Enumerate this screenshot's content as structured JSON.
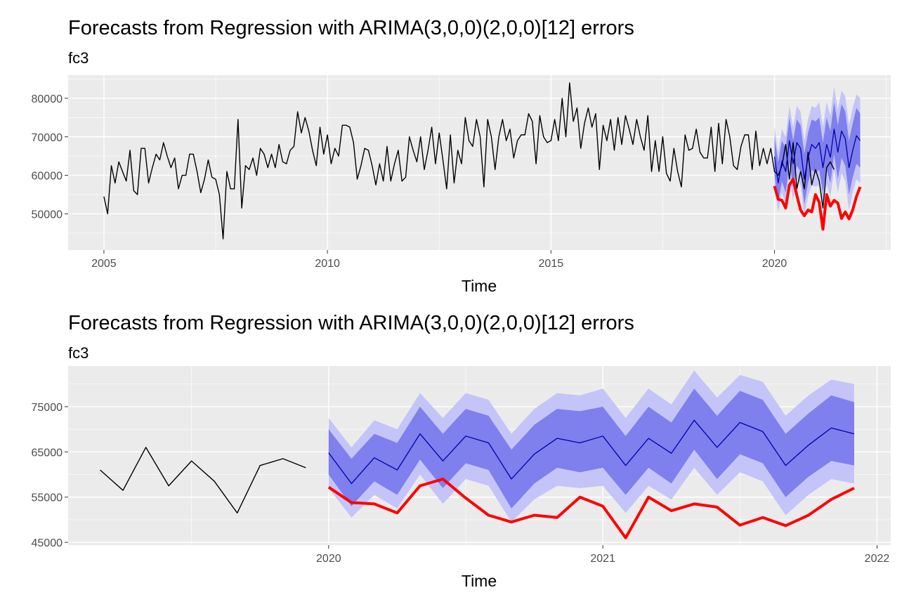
{
  "colors": {
    "panel_bg": "#ebebeb",
    "grid_major": "#ffffff",
    "history": "#000000",
    "forecast_mean": "#0000aa",
    "pi80": "#7f7fee",
    "pi95": "#c4c4f8",
    "actual": "#ff0000"
  },
  "chart_data": [
    {
      "type": "line",
      "title": "Forecasts from Regression with ARIMA(3,0,0)(2,0,0)[12] errors",
      "subtitle": "fc3",
      "xlabel": "Time",
      "ylabel": "",
      "xlim": [
        2004.2,
        2022.6
      ],
      "ylim": [
        40600,
        86000
      ],
      "xticks": [
        2005,
        2010,
        2015,
        2020
      ],
      "xtick_labels": [
        "2005",
        "2010",
        "2015",
        "2020"
      ],
      "yticks": [
        50000,
        60000,
        70000,
        80000
      ],
      "ytick_labels": [
        "50000",
        "60000",
        "70000",
        "80000"
      ],
      "grid": true,
      "legend": "none",
      "history": {
        "start": 2005.0,
        "frequency": 12,
        "values": [
          54500,
          50000,
          62500,
          58000,
          63500,
          61000,
          58500,
          66500,
          56000,
          55000,
          67000,
          67000,
          58000,
          62000,
          65500,
          64000,
          68500,
          65000,
          62000,
          64500,
          56500,
          60000,
          60000,
          65500,
          65500,
          61000,
          55500,
          59000,
          64000,
          59500,
          59000,
          55000,
          43500,
          61000,
          56500,
          56500,
          74500,
          51500,
          62500,
          61500,
          64500,
          60000,
          67000,
          65500,
          62000,
          65500,
          62000,
          68000,
          63500,
          63000,
          66500,
          67500,
          76500,
          71000,
          75000,
          71500,
          66500,
          62500,
          72500,
          65500,
          70500,
          63000,
          67000,
          65000,
          73000,
          73000,
          72500,
          68500,
          59000,
          62500,
          67000,
          66500,
          62500,
          57500,
          63000,
          58500,
          67500,
          58500,
          63000,
          66500,
          58500,
          59500,
          70000,
          66500,
          63500,
          70000,
          61500,
          66500,
          72500,
          63000,
          71000,
          64000,
          56500,
          70500,
          58000,
          66500,
          63000,
          75000,
          69000,
          67500,
          74500,
          70000,
          57000,
          74500,
          70000,
          61500,
          70000,
          74500,
          69000,
          72000,
          64500,
          69000,
          70500,
          70500,
          76000,
          74000,
          63000,
          75500,
          70000,
          68500,
          69000,
          74500,
          69000,
          80000,
          70000,
          84000,
          74000,
          77500,
          67000,
          73500,
          77500,
          72500,
          76000,
          61500,
          73000,
          69000,
          74500,
          66500,
          75000,
          68000,
          75500,
          72000,
          68000,
          74500,
          70000,
          66500,
          75500,
          61000,
          69000,
          61000,
          70000,
          60500,
          58500,
          67000,
          61000,
          57000,
          70500,
          66500,
          67000,
          72000,
          66000,
          64500,
          64500,
          72500,
          61000,
          73500,
          63000,
          74500,
          70000,
          62500,
          61500,
          67500,
          70500,
          70500,
          61500,
          71500,
          62500,
          67000,
          63000,
          67000,
          61000,
          60000,
          62500,
          68000,
          59000,
          68500,
          56500,
          61000,
          56500,
          66000,
          57500,
          61500,
          58500,
          51500,
          62000,
          63500,
          61500
        ]
      },
      "forecast": {
        "start": 2020.0,
        "frequency": 12,
        "mean": [
          64800,
          58000,
          63700,
          61000,
          69000,
          63000,
          68500,
          67000,
          59000,
          64500,
          68000,
          67000,
          68500,
          62000,
          68000,
          64700,
          72000,
          66000,
          71500,
          69500,
          62000,
          66500,
          70300,
          69000
        ],
        "lo80": [
          60000,
          53000,
          58500,
          55500,
          63300,
          57000,
          62500,
          61000,
          52500,
          58000,
          61500,
          60500,
          61500,
          55500,
          61500,
          58000,
          65500,
          59000,
          64500,
          62500,
          55000,
          59500,
          63000,
          62000
        ],
        "hi80": [
          70000,
          63500,
          69000,
          67000,
          75000,
          69000,
          74500,
          73000,
          65500,
          71000,
          74500,
          74000,
          75000,
          68500,
          75000,
          71500,
          79000,
          73000,
          78500,
          76500,
          69000,
          73500,
          77500,
          76000
        ],
        "lo95": [
          57000,
          50500,
          55500,
          52500,
          60000,
          53500,
          59000,
          57500,
          49500,
          54500,
          57500,
          57000,
          57500,
          51500,
          57500,
          54500,
          61500,
          55500,
          60500,
          58500,
          51000,
          55500,
          59000,
          58000
        ],
        "hi95": [
          72500,
          66000,
          72000,
          70000,
          78000,
          72500,
          78000,
          76500,
          69000,
          74500,
          78000,
          77500,
          79000,
          72500,
          79000,
          75500,
          83000,
          77000,
          82000,
          80500,
          73000,
          77500,
          81000,
          80000
        ]
      },
      "actual": {
        "start": 2020.0,
        "frequency": 12,
        "values": [
          57200,
          53800,
          53500,
          51500,
          57500,
          59000,
          54800,
          51000,
          49500,
          51000,
          50500,
          55000,
          53000,
          46000,
          55000,
          52000,
          53500,
          52800,
          48800,
          50500,
          48700,
          51000,
          54500,
          57000
        ]
      }
    },
    {
      "type": "line",
      "title": "Forecasts from Regression with ARIMA(3,0,0)(2,0,0)[12] errors",
      "subtitle": "fc3",
      "xlabel": "Time",
      "ylabel": "",
      "xlim": [
        2019.05,
        2022.05
      ],
      "ylim": [
        44400,
        84000
      ],
      "xticks": [
        2020,
        2021,
        2022
      ],
      "xtick_labels": [
        "2020",
        "2021",
        "2022"
      ],
      "yticks": [
        45000,
        55000,
        65000,
        75000
      ],
      "ytick_labels": [
        "45000",
        "55000",
        "65000",
        "75000"
      ],
      "grid": true,
      "legend": "none",
      "history": {
        "start": 2019.1667,
        "frequency": 12,
        "values": [
          61000,
          56500,
          66000,
          57500,
          63000,
          58500,
          51500,
          62000,
          63500,
          61500
        ]
      },
      "forecast": {
        "start": 2020.0,
        "frequency": 12,
        "mean": [
          64800,
          58000,
          63700,
          61000,
          69000,
          63000,
          68500,
          67000,
          59000,
          64500,
          68000,
          67000,
          68500,
          62000,
          68000,
          64700,
          72000,
          66000,
          71500,
          69500,
          62000,
          66500,
          70300,
          69000
        ],
        "lo80": [
          60000,
          53000,
          58500,
          55500,
          63300,
          57000,
          62500,
          61000,
          52500,
          58000,
          61500,
          60500,
          61500,
          55500,
          61500,
          58000,
          65500,
          59000,
          64500,
          62500,
          55000,
          59500,
          63000,
          62000
        ],
        "hi80": [
          70000,
          63500,
          69000,
          67000,
          75000,
          69000,
          74500,
          73000,
          65500,
          71000,
          74500,
          74000,
          75000,
          68500,
          75000,
          71500,
          79000,
          73000,
          78500,
          76500,
          69000,
          73500,
          77500,
          76000
        ],
        "lo95": [
          57000,
          50500,
          55500,
          52500,
          60000,
          53500,
          59000,
          57500,
          49500,
          54500,
          57500,
          57000,
          57500,
          51500,
          57500,
          54500,
          61500,
          55500,
          60500,
          58500,
          51000,
          55500,
          59000,
          58000
        ],
        "hi95": [
          72500,
          66000,
          72000,
          70000,
          78000,
          72500,
          78000,
          76500,
          69000,
          74500,
          78000,
          77500,
          79000,
          72500,
          79000,
          75500,
          83000,
          77000,
          82000,
          80500,
          73000,
          77500,
          81000,
          80000
        ]
      },
      "actual": {
        "start": 2020.0,
        "frequency": 12,
        "values": [
          57200,
          53800,
          53500,
          51500,
          57500,
          59000,
          54800,
          51000,
          49500,
          51000,
          50500,
          55000,
          53000,
          46000,
          55000,
          52000,
          53500,
          52800,
          48800,
          50500,
          48700,
          51000,
          54500,
          57000
        ]
      }
    }
  ]
}
